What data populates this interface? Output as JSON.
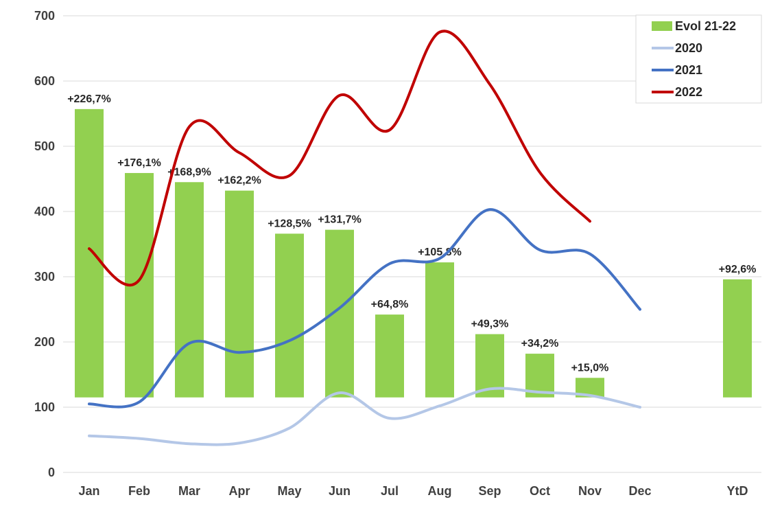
{
  "chart_data": {
    "type": "bar",
    "categories": [
      "Jan",
      "Feb",
      "Mar",
      "Apr",
      "May",
      "Jun",
      "Jul",
      "Aug",
      "Sep",
      "Oct",
      "Nov",
      "Dec",
      "YtD"
    ],
    "ylim": [
      0,
      700
    ],
    "yticks": [
      "0",
      "100",
      "200",
      "300",
      "400",
      "500",
      "600",
      "700"
    ],
    "grid": true,
    "legend_position": "top-right",
    "bar_baseline": 115,
    "bar_series": {
      "name": "Evol 21-22",
      "color": "#92d050",
      "values": [
        557,
        459,
        445,
        432,
        366,
        372,
        242,
        322,
        212,
        182,
        145,
        null,
        296
      ],
      "labels": [
        "+226,7%",
        "+176,1%",
        "+168,9%",
        "+162,2%",
        "+128,5%",
        "+131,7%",
        "+64,8%",
        "+105,8%",
        "+49,3%",
        "+34,2%",
        "+15,0%",
        "",
        "+92,6%"
      ]
    },
    "line_series": [
      {
        "name": "2020",
        "color": "#b4c7e7",
        "values": [
          56,
          52,
          44,
          45,
          68,
          122,
          83,
          102,
          128,
          123,
          118,
          100,
          null
        ]
      },
      {
        "name": "2021",
        "color": "#4472c4",
        "values": [
          105,
          108,
          198,
          184,
          202,
          252,
          320,
          328,
          403,
          341,
          335,
          250,
          null
        ]
      },
      {
        "name": "2022",
        "color": "#c00000",
        "values": [
          343,
          295,
          530,
          490,
          455,
          578,
          525,
          675,
          595,
          460,
          385,
          null,
          null
        ]
      }
    ]
  }
}
